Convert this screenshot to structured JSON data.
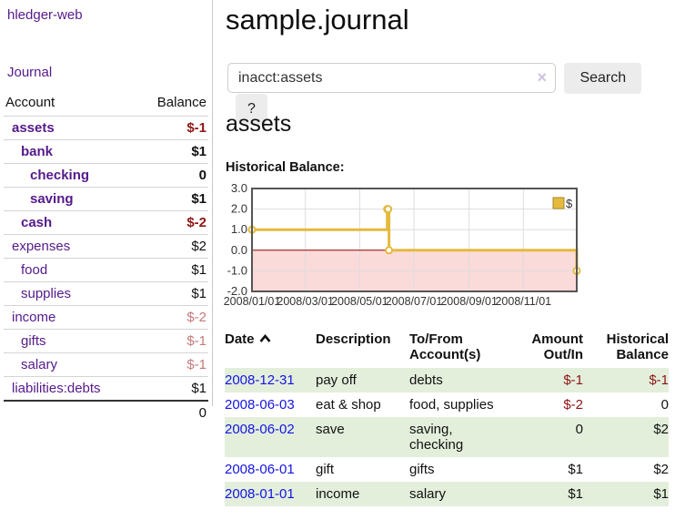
{
  "app": {
    "title": "hledger-web"
  },
  "sidebar": {
    "journal_link": "Journal",
    "accounts": {
      "headers": {
        "account": "Account",
        "balance": "Balance"
      },
      "rows": [
        {
          "name": "assets",
          "balance": "$-1"
        },
        {
          "name": "bank",
          "balance": "$1"
        },
        {
          "name": "checking",
          "balance": "0"
        },
        {
          "name": "saving",
          "balance": "$1"
        },
        {
          "name": "cash",
          "balance": "$-2"
        },
        {
          "name": "expenses",
          "balance": "$2"
        },
        {
          "name": "food",
          "balance": "$1"
        },
        {
          "name": "supplies",
          "balance": "$1"
        },
        {
          "name": "income",
          "balance": "$-2"
        },
        {
          "name": "gifts",
          "balance": "$-1"
        },
        {
          "name": "salary",
          "balance": "$-1"
        },
        {
          "name": "liabilities:debts",
          "balance": "$1"
        }
      ],
      "total": "0"
    }
  },
  "main": {
    "title": "sample.journal",
    "search": {
      "value": "inacct:assets",
      "clear_icon": "×",
      "search_button": "Search",
      "help_button": "?"
    },
    "account_heading": "assets",
    "chart_label": "Historical Balance:"
  },
  "chart_data": {
    "type": "line",
    "step": true,
    "series": [
      {
        "name": "$",
        "color": "#e4ba3e",
        "points": [
          [
            "2008-01-01",
            1
          ],
          [
            "2008-06-01",
            2
          ],
          [
            "2008-06-02",
            2
          ],
          [
            "2008-06-03",
            0
          ],
          [
            "2008-12-31",
            -1
          ]
        ]
      }
    ],
    "x_ticks": [
      "2008/01/01",
      "2008/03/01",
      "2008/05/01",
      "2008/07/01",
      "2008/09/01",
      "2008/11/01"
    ],
    "y_ticks": [
      "3.0",
      "2.0",
      "1.0",
      "0.0",
      "-1.0",
      "-2.0"
    ],
    "xlim": [
      "2008-01-01",
      "2008-12-31"
    ],
    "ylim": [
      -2,
      3
    ],
    "legend": {
      "label": "$",
      "position": "top-right"
    },
    "grid": true,
    "negative_region_color": "#fbdada",
    "zero_line_color": "#8b0000",
    "border_color": "#555"
  },
  "register": {
    "headers": {
      "date": "Date",
      "description": "Description",
      "accounts": "To/From Account(s)",
      "amount": "Amount Out/In",
      "balance": "Historical Balance"
    },
    "rows": [
      {
        "date": "2008-12-31",
        "description": "pay off",
        "accounts": "debts",
        "amount": "$-1",
        "balance": "$-1"
      },
      {
        "date": "2008-06-03",
        "description": "eat & shop",
        "accounts": "food, supplies",
        "amount": "$-2",
        "balance": "0"
      },
      {
        "date": "2008-06-02",
        "description": "save",
        "accounts": "saving, checking",
        "amount": "0",
        "balance": "$2"
      },
      {
        "date": "2008-06-01",
        "description": "gift",
        "accounts": "gifts",
        "amount": "$1",
        "balance": "$2"
      },
      {
        "date": "2008-01-01",
        "description": "income",
        "accounts": "salary",
        "amount": "$1",
        "balance": "$1"
      }
    ]
  },
  "colors": {
    "link_purple": "#551a8b",
    "link_blue": "#1414e6",
    "negative": "#8f1414",
    "faded_negative": "#c47a7a",
    "row_stripe_green": "#e3efdb",
    "chart_gold": "#e4ba3e"
  }
}
